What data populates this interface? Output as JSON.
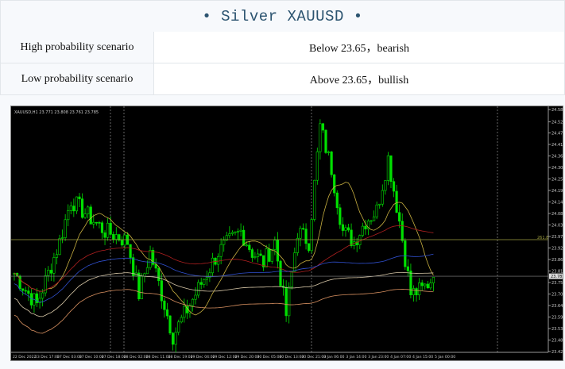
{
  "title": "• Silver XAUUSD •",
  "rows": [
    {
      "label": "High probability scenario",
      "value": "Below 23.65，bearish"
    },
    {
      "label": "Low probability  scenario",
      "value": "Above 23.65，bullish"
    }
  ],
  "chart_data": {
    "type": "candlestick",
    "symbol_info": "XAUUSD,H1  23.771 23.808 23.761 23.785",
    "current_price": "23.785",
    "fib_label": "261.8",
    "fib_level": 23.96,
    "ylim": [
      23.425,
      24.582
    ],
    "price_ticks": [
      "24.582",
      "24.523",
      "24.470",
      "24.415",
      "24.360",
      "24.305",
      "24.250",
      "24.195",
      "24.140",
      "24.085",
      "24.030",
      "23.975",
      "23.920",
      "23.865",
      "23.810",
      "23.755",
      "23.700",
      "23.645",
      "23.590",
      "23.535",
      "23.480",
      "23.425"
    ],
    "time_ticks": [
      "22 Dec 2022",
      "23 Dec 17:00",
      "27 Dec 03:00",
      "27 Dec 10:00",
      "27 Dec 18:00",
      "28 Dec 02:00",
      "28 Dec 11:00",
      "28 Dec 19:00",
      "29 Dec 04:00",
      "29 Dec 12:00",
      "29 Dec 20:00",
      "30 Dec 05:00",
      "30 Dec 13:00",
      "30 Dec 21:00",
      "3 Jan 06:00",
      "3 Jan 14:00",
      "3 Jan 23:00",
      "4 Jan 07:00",
      "4 Jan 15:00",
      "5 Jan 00:00"
    ],
    "price_path": [
      23.8,
      23.72,
      23.65,
      23.8,
      23.95,
      24.15,
      24.1,
      24.05,
      24.0,
      23.98,
      23.95,
      23.7,
      23.9,
      23.7,
      23.5,
      23.6,
      23.7,
      23.8,
      23.9,
      23.95,
      24.0,
      23.9,
      23.85,
      23.95,
      23.6,
      24.0,
      23.95,
      24.5,
      24.3,
      24.0,
      23.95,
      24.05,
      24.1,
      24.35,
      24.05,
      23.7,
      23.72,
      23.78
    ],
    "colors": {
      "bull": "#00e000",
      "bear": "#00e000",
      "fast_ma": "#c8b040",
      "red_ma": "#b02020",
      "blue_ma": "#3050d0",
      "tan_ma": "#d8c8a8",
      "orange_ma": "#d89060",
      "fib": "#a0a040"
    }
  }
}
